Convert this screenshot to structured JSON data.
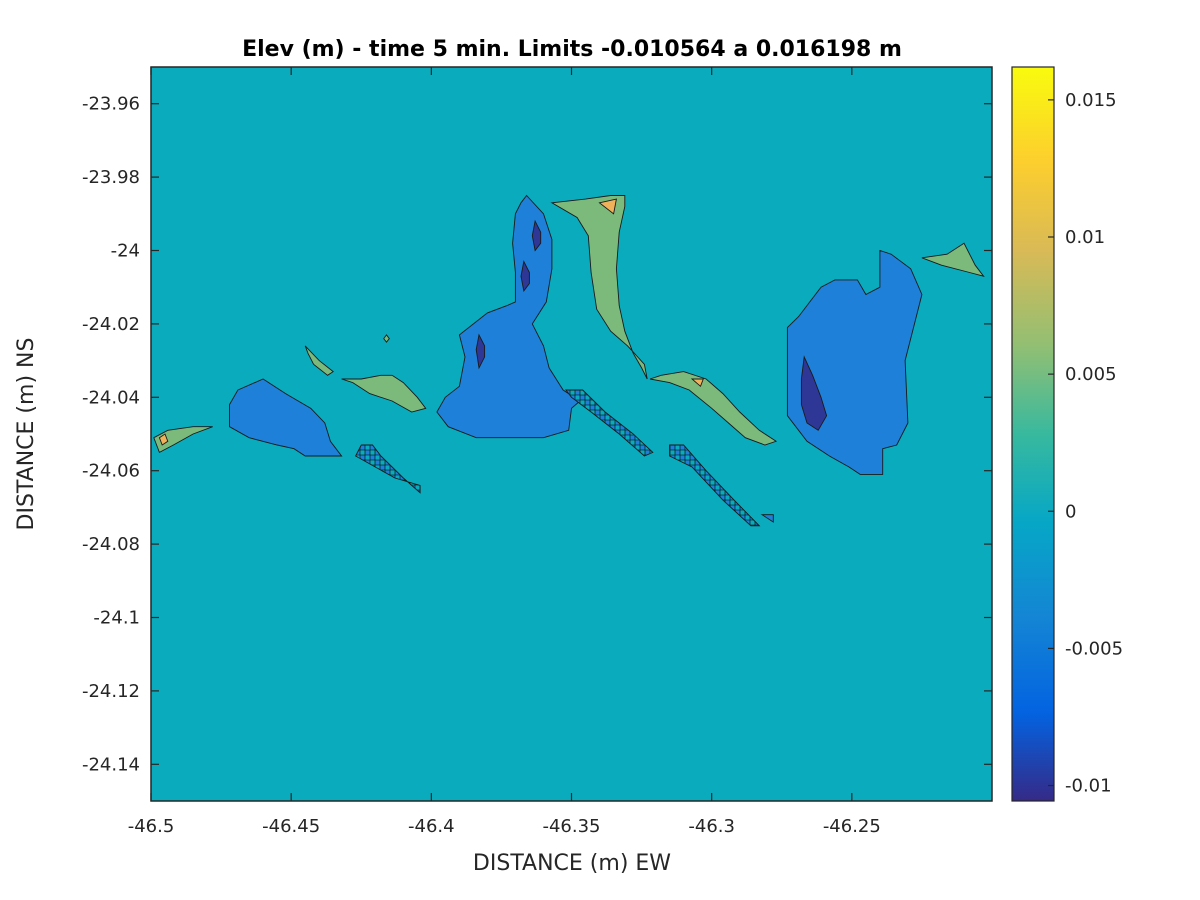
{
  "chart_data": {
    "type": "heatmap",
    "subtype": "filled-contour",
    "title": "Elev (m) - time 5 min. Limits -0.010564 a 0.016198 m",
    "xlabel": "DISTANCE (m) EW",
    "ylabel": "DISTANCE (m) NS",
    "xlim": [
      -46.5,
      -46.2
    ],
    "ylim": [
      -24.15,
      -23.95
    ],
    "x_ticks": [
      -46.5,
      -46.45,
      -46.4,
      -46.35,
      -46.3,
      -46.25
    ],
    "x_tick_labels": [
      "-46.5",
      "-46.45",
      "-46.4",
      "-46.35",
      "-46.3",
      "-46.25"
    ],
    "y_ticks": [
      -23.96,
      -23.98,
      -24,
      -24.02,
      -24.04,
      -24.06,
      -24.08,
      -24.1,
      -24.12,
      -24.14
    ],
    "y_tick_labels": [
      "-23.96",
      "-23.98",
      "-24",
      "-24.02",
      "-24.04",
      "-24.06",
      "-24.08",
      "-24.1",
      "-24.12",
      "-24.14"
    ],
    "colorbar": {
      "colormap": "parula",
      "limits": [
        -0.010564,
        0.016198
      ],
      "ticks": [
        0.015,
        0.01,
        0.005,
        0,
        -0.005,
        -0.01
      ],
      "tick_labels": [
        "0.015",
        "0.01",
        "0.005",
        "0",
        "-0.005",
        "-0.01"
      ],
      "position": "right"
    },
    "background_level": 0,
    "background_color": "#0aabbd",
    "level_colors": {
      "neg_strong": "#2e3795",
      "neg": "#1e80d8",
      "pos": "#7cba7c",
      "pos_strong": "#efb15a"
    },
    "regions": [
      {
        "level": "pos",
        "points": [
          [
            -46.499,
            -24.051
          ],
          [
            -46.494,
            -24.049
          ],
          [
            -46.485,
            -24.048
          ],
          [
            -46.478,
            -24.048
          ],
          [
            -46.485,
            -24.05
          ],
          [
            -46.492,
            -24.053
          ],
          [
            -46.497,
            -24.055
          ]
        ]
      },
      {
        "level": "pos_strong",
        "points": [
          [
            -46.497,
            -24.051
          ],
          [
            -46.495,
            -24.05
          ],
          [
            -46.494,
            -24.052
          ],
          [
            -46.496,
            -24.053
          ]
        ]
      },
      {
        "level": "neg",
        "points": [
          [
            -46.469,
            -24.038
          ],
          [
            -46.46,
            -24.035
          ],
          [
            -46.452,
            -24.039
          ],
          [
            -46.443,
            -24.043
          ],
          [
            -46.438,
            -24.047
          ],
          [
            -46.436,
            -24.052
          ],
          [
            -46.434,
            -24.054
          ],
          [
            -46.432,
            -24.056
          ],
          [
            -46.435,
            -24.056
          ],
          [
            -46.445,
            -24.056
          ],
          [
            -46.449,
            -24.054
          ],
          [
            -46.455,
            -24.053
          ],
          [
            -46.465,
            -24.051
          ],
          [
            -46.472,
            -24.048
          ],
          [
            -46.472,
            -24.042
          ]
        ]
      },
      {
        "level": "pos",
        "points": [
          [
            -46.445,
            -24.026
          ],
          [
            -46.44,
            -24.03
          ],
          [
            -46.435,
            -24.033
          ],
          [
            -46.437,
            -24.034
          ],
          [
            -46.442,
            -24.031
          ],
          [
            -46.444,
            -24.028
          ]
        ]
      },
      {
        "level": "pos",
        "points": [
          [
            -46.418,
            -24.034
          ],
          [
            -46.425,
            -24.035
          ],
          [
            -46.432,
            -24.035
          ],
          [
            -46.428,
            -24.036
          ],
          [
            -46.422,
            -24.039
          ],
          [
            -46.414,
            -24.041
          ],
          [
            -46.407,
            -24.044
          ],
          [
            -46.402,
            -24.043
          ],
          [
            -46.405,
            -24.04
          ],
          [
            -46.41,
            -24.036
          ],
          [
            -46.414,
            -24.034
          ]
        ]
      },
      {
        "level": "pos",
        "points": [
          [
            -46.416,
            -24.023
          ],
          [
            -46.415,
            -24.024
          ],
          [
            -46.416,
            -24.025
          ],
          [
            -46.417,
            -24.024
          ]
        ]
      },
      {
        "level": "neg",
        "points": [
          [
            -46.366,
            -23.985
          ],
          [
            -46.36,
            -23.99
          ],
          [
            -46.357,
            -23.997
          ],
          [
            -46.357,
            -24.005
          ],
          [
            -46.359,
            -24.014
          ],
          [
            -46.364,
            -24.02
          ],
          [
            -46.36,
            -24.026
          ],
          [
            -46.358,
            -24.032
          ],
          [
            -46.353,
            -24.038
          ],
          [
            -46.347,
            -24.041
          ],
          [
            -46.35,
            -24.043
          ],
          [
            -46.351,
            -24.049
          ],
          [
            -46.36,
            -24.051
          ],
          [
            -46.384,
            -24.051
          ],
          [
            -46.394,
            -24.048
          ],
          [
            -46.398,
            -24.044
          ],
          [
            -46.395,
            -24.04
          ],
          [
            -46.39,
            -24.037
          ],
          [
            -46.388,
            -24.029
          ],
          [
            -46.39,
            -24.023
          ],
          [
            -46.38,
            -24.017
          ],
          [
            -46.373,
            -24.015
          ],
          [
            -46.37,
            -24.014
          ],
          [
            -46.37,
            -24.006
          ],
          [
            -46.371,
            -23.998
          ],
          [
            -46.37,
            -23.99
          ],
          [
            -46.368,
            -23.987
          ]
        ]
      },
      {
        "level": "neg_strong",
        "points": [
          [
            -46.363,
            -23.992
          ],
          [
            -46.361,
            -23.995
          ],
          [
            -46.361,
            -23.998
          ],
          [
            -46.363,
            -24.0
          ],
          [
            -46.364,
            -23.996
          ]
        ]
      },
      {
        "level": "neg_strong",
        "points": [
          [
            -46.367,
            -24.003
          ],
          [
            -46.365,
            -24.006
          ],
          [
            -46.365,
            -24.009
          ],
          [
            -46.367,
            -24.011
          ],
          [
            -46.368,
            -24.007
          ]
        ]
      },
      {
        "level": "neg_strong",
        "points": [
          [
            -46.383,
            -24.023
          ],
          [
            -46.381,
            -24.026
          ],
          [
            -46.381,
            -24.029
          ],
          [
            -46.383,
            -24.032
          ],
          [
            -46.384,
            -24.027
          ]
        ]
      },
      {
        "level": "pos",
        "points": [
          [
            -46.357,
            -23.987
          ],
          [
            -46.345,
            -23.986
          ],
          [
            -46.336,
            -23.985
          ],
          [
            -46.331,
            -23.985
          ],
          [
            -46.331,
            -23.988
          ],
          [
            -46.333,
            -23.995
          ],
          [
            -46.334,
            -24.005
          ],
          [
            -46.333,
            -24.015
          ],
          [
            -46.331,
            -24.022
          ],
          [
            -46.328,
            -24.028
          ],
          [
            -46.325,
            -24.032
          ],
          [
            -46.323,
            -24.035
          ],
          [
            -46.324,
            -24.031
          ],
          [
            -46.33,
            -24.026
          ],
          [
            -46.336,
            -24.022
          ],
          [
            -46.341,
            -24.016
          ],
          [
            -46.343,
            -24.006
          ],
          [
            -46.344,
            -23.996
          ],
          [
            -46.348,
            -23.991
          ]
        ]
      },
      {
        "level": "pos_strong",
        "points": [
          [
            -46.34,
            -23.987
          ],
          [
            -46.334,
            -23.986
          ],
          [
            -46.335,
            -23.99
          ]
        ]
      },
      {
        "level": "pos",
        "points": [
          [
            -46.318,
            -24.034
          ],
          [
            -46.31,
            -24.033
          ],
          [
            -46.302,
            -24.035
          ],
          [
            -46.296,
            -24.039
          ],
          [
            -46.29,
            -24.044
          ],
          [
            -46.283,
            -24.049
          ],
          [
            -46.277,
            -24.052
          ],
          [
            -46.281,
            -24.053
          ],
          [
            -46.288,
            -24.051
          ],
          [
            -46.294,
            -24.047
          ],
          [
            -46.3,
            -24.043
          ],
          [
            -46.308,
            -24.038
          ],
          [
            -46.315,
            -24.036
          ],
          [
            -46.322,
            -24.035
          ]
        ]
      },
      {
        "level": "pos_strong",
        "points": [
          [
            -46.307,
            -24.035
          ],
          [
            -46.303,
            -24.035
          ],
          [
            -46.304,
            -24.037
          ]
        ]
      },
      {
        "level": "neg",
        "points": [
          [
            -46.256,
            -24.008
          ],
          [
            -46.261,
            -24.01
          ],
          [
            -46.265,
            -24.014
          ],
          [
            -46.269,
            -24.018
          ],
          [
            -46.273,
            -24.021
          ],
          [
            -46.273,
            -24.045
          ],
          [
            -46.266,
            -24.052
          ],
          [
            -46.258,
            -24.056
          ],
          [
            -46.251,
            -24.059
          ],
          [
            -46.247,
            -24.061
          ],
          [
            -46.239,
            -24.061
          ],
          [
            -46.239,
            -24.054
          ],
          [
            -46.234,
            -24.053
          ],
          [
            -46.23,
            -24.047
          ],
          [
            -46.231,
            -24.03
          ],
          [
            -46.228,
            -24.021
          ],
          [
            -46.225,
            -24.012
          ],
          [
            -46.229,
            -24.005
          ],
          [
            -46.236,
            -24.001
          ],
          [
            -46.24,
            -24.0
          ],
          [
            -46.24,
            -24.01
          ],
          [
            -46.245,
            -24.012
          ],
          [
            -46.248,
            -24.008
          ]
        ]
      },
      {
        "level": "neg_strong",
        "points": [
          [
            -46.267,
            -24.029
          ],
          [
            -46.264,
            -24.034
          ],
          [
            -46.261,
            -24.04
          ],
          [
            -46.259,
            -24.045
          ],
          [
            -46.262,
            -24.049
          ],
          [
            -46.266,
            -24.047
          ],
          [
            -46.268,
            -24.042
          ],
          [
            -46.268,
            -24.035
          ]
        ]
      },
      {
        "level": "pos",
        "points": [
          [
            -46.21,
            -23.998
          ],
          [
            -46.216,
            -24.001
          ],
          [
            -46.225,
            -24.002
          ],
          [
            -46.218,
            -24.004
          ],
          [
            -46.208,
            -24.006
          ],
          [
            -46.203,
            -24.007
          ],
          [
            -46.206,
            -24.004
          ]
        ]
      },
      {
        "level": "neg_checker",
        "points": [
          [
            -46.425,
            -24.053
          ],
          [
            -46.421,
            -24.053
          ],
          [
            -46.418,
            -24.056
          ],
          [
            -46.41,
            -24.062
          ],
          [
            -46.404,
            -24.066
          ],
          [
            -46.404,
            -24.064
          ],
          [
            -46.413,
            -24.062
          ],
          [
            -46.42,
            -24.059
          ],
          [
            -46.427,
            -24.056
          ]
        ]
      },
      {
        "level": "neg_checker",
        "points": [
          [
            -46.352,
            -24.038
          ],
          [
            -46.346,
            -24.038
          ],
          [
            -46.338,
            -24.044
          ],
          [
            -46.328,
            -24.05
          ],
          [
            -46.321,
            -24.055
          ],
          [
            -46.324,
            -24.056
          ],
          [
            -46.333,
            -24.05
          ],
          [
            -46.343,
            -24.044
          ],
          [
            -46.35,
            -24.04
          ]
        ]
      },
      {
        "level": "neg_checker",
        "points": [
          [
            -46.315,
            -24.053
          ],
          [
            -46.31,
            -24.053
          ],
          [
            -46.302,
            -24.06
          ],
          [
            -46.292,
            -24.068
          ],
          [
            -46.283,
            -24.075
          ],
          [
            -46.286,
            -24.075
          ],
          [
            -46.296,
            -24.068
          ],
          [
            -46.307,
            -24.059
          ],
          [
            -46.315,
            -24.056
          ]
        ]
      },
      {
        "level": "neg",
        "points": [
          [
            -46.282,
            -24.072
          ],
          [
            -46.278,
            -24.072
          ],
          [
            -46.278,
            -24.074
          ]
        ]
      }
    ]
  }
}
